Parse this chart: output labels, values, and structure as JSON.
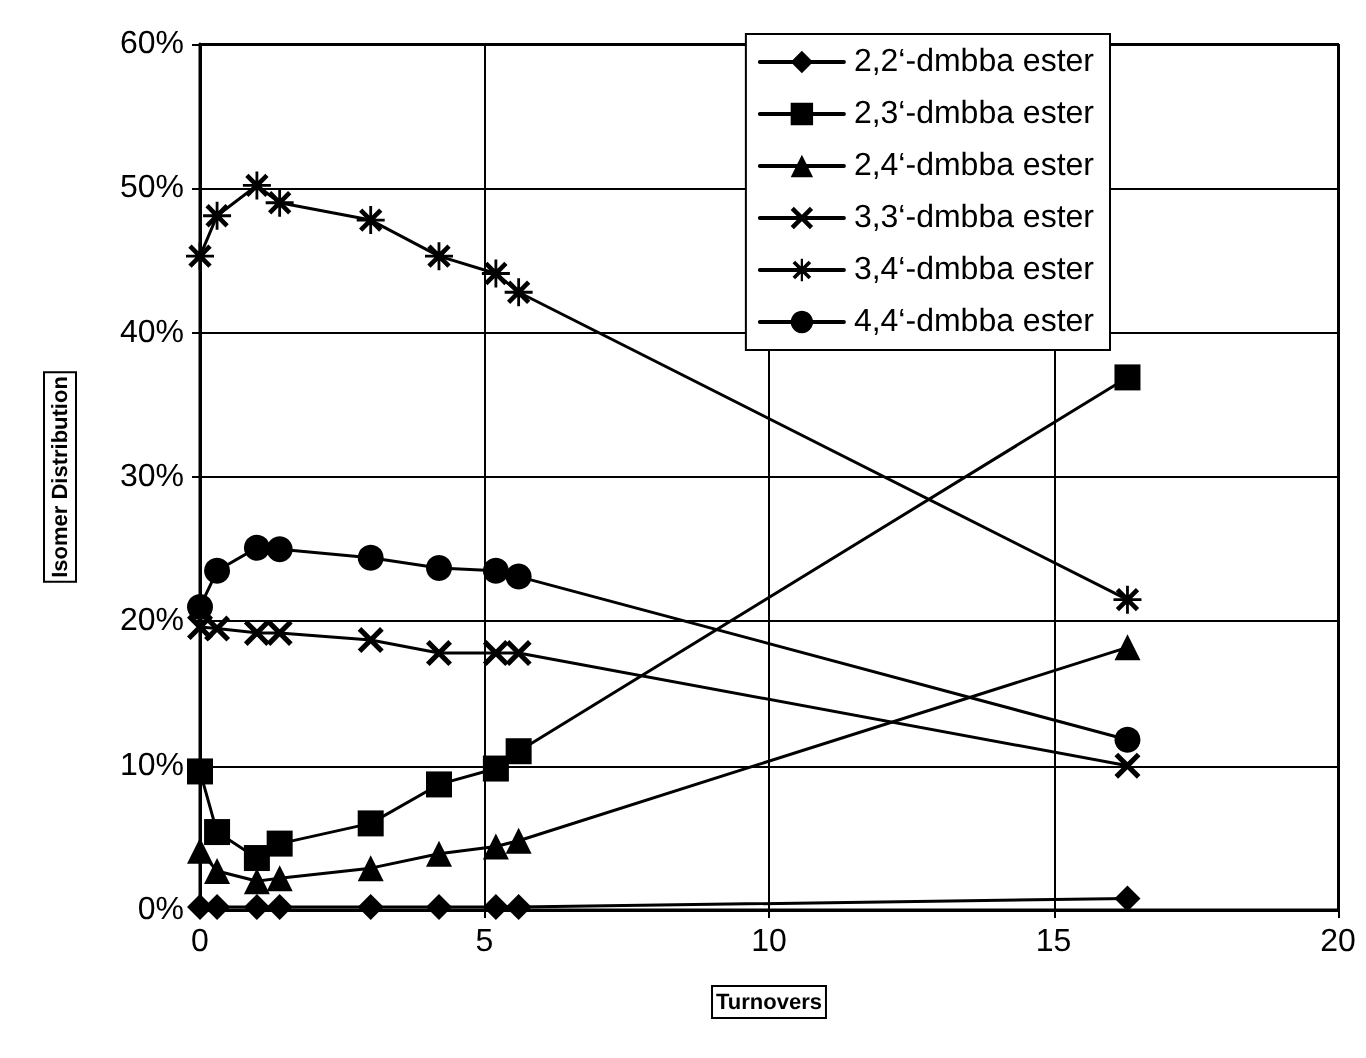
{
  "chart_data": {
    "type": "line",
    "xlabel": "Turnovers",
    "ylabel": "Isomer Distribution",
    "x": [
      0,
      0.3,
      1,
      1.4,
      3,
      4.2,
      5.2,
      5.6,
      16.3
    ],
    "series": [
      {
        "name": "2,2‘-dmbba ester",
        "color": "#000000",
        "marker": "diamond",
        "values": [
          0.2,
          0.2,
          0.2,
          0.2,
          0.2,
          0.2,
          0.2,
          0.2,
          0.8
        ]
      },
      {
        "name": "2,3‘-dmbba ester",
        "color": "#000000",
        "marker": "square",
        "values": [
          9.6,
          5.4,
          3.6,
          4.6,
          6.0,
          8.7,
          9.8,
          11.0,
          36.9
        ]
      },
      {
        "name": "2,4‘-dmbba ester",
        "color": "#000000",
        "marker": "triangle",
        "values": [
          4.1,
          2.7,
          2.0,
          2.2,
          2.9,
          3.9,
          4.4,
          4.8,
          18.2
        ]
      },
      {
        "name": "3,3‘-dmbba ester",
        "color": "#000000",
        "marker": "cross",
        "values": [
          19.6,
          19.5,
          19.2,
          19.2,
          18.7,
          17.8,
          17.8,
          17.8,
          10.0
        ]
      },
      {
        "name": "3,4‘-dmbba ester",
        "color": "#000000",
        "marker": "star",
        "values": [
          45.3,
          48.1,
          50.2,
          49.0,
          47.8,
          45.3,
          44.1,
          42.8,
          21.5
        ]
      },
      {
        "name": "4,4‘-dmbba ester",
        "color": "#000000",
        "marker": "circle",
        "values": [
          21.0,
          23.5,
          25.1,
          25.0,
          24.4,
          23.7,
          23.5,
          23.1,
          11.8
        ]
      }
    ],
    "xlim": [
      0,
      20
    ],
    "xticks": [
      0,
      5,
      10,
      15,
      20
    ],
    "ylim": [
      0,
      60
    ],
    "yticks": [
      {
        "value": 0,
        "label": "0%"
      },
      {
        "value": 10,
        "label": "10%"
      },
      {
        "value": 20,
        "label": "20%"
      },
      {
        "value": 30,
        "label": "30%"
      },
      {
        "value": 40,
        "label": "40%"
      },
      {
        "value": 50,
        "label": "50%"
      },
      {
        "value": 60,
        "label": "60%"
      }
    ],
    "grid": true,
    "legend": "top right",
    "line_style": "solid"
  }
}
